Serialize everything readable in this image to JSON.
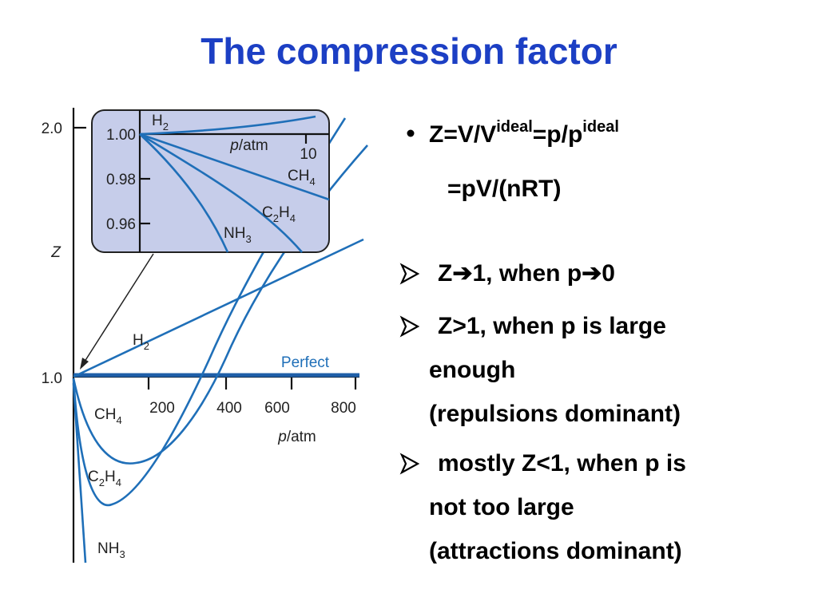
{
  "title": "The compression factor",
  "figure": {
    "y_axis_label": "Z",
    "y_ticks": [
      "2.0",
      "1.0"
    ],
    "x_ticks": [
      "200",
      "400",
      "600",
      "800"
    ],
    "x_axis_label": {
      "var": "p",
      "unit": "/atm"
    },
    "inset_y_ticks": [
      "1.00",
      "0.98",
      "0.96"
    ],
    "inset_x_tick": "10",
    "inset_x_label": {
      "var": "p",
      "unit": "/atm"
    },
    "inset_labels": {
      "h2": {
        "base": "H",
        "sub": "2"
      },
      "ch4": {
        "base": "CH",
        "sub": "4"
      },
      "c2h4": {
        "base": "C",
        "sub": "2",
        "base2": "H",
        "sub2": "4"
      },
      "nh3": {
        "base": "NH",
        "sub": "3"
      }
    },
    "labels": {
      "h2": {
        "base": "H",
        "sub": "2"
      },
      "perfect": "Perfect",
      "ch4": {
        "base": "CH",
        "sub": "4"
      },
      "c2h4": {
        "base": "C",
        "sub": "2",
        "base2": "H",
        "sub2": "4"
      },
      "nh3": {
        "base": "NH",
        "sub": "3"
      }
    }
  },
  "bullet": {
    "line1": [
      "Z=V/V",
      "ideal",
      "=p/p",
      "ideal"
    ],
    "line2": "=pV/(nRT)"
  },
  "arrow_bullets": [
    {
      "lines": [
        "Z➔1, when p➔0"
      ]
    },
    {
      "lines": [
        "Z>1, when p is large",
        "enough",
        "(repulsions dominant)"
      ]
    },
    {
      "lines": [
        "mostly Z<1, when p is",
        "not too large",
        "(attractions dominant)"
      ]
    }
  ]
}
